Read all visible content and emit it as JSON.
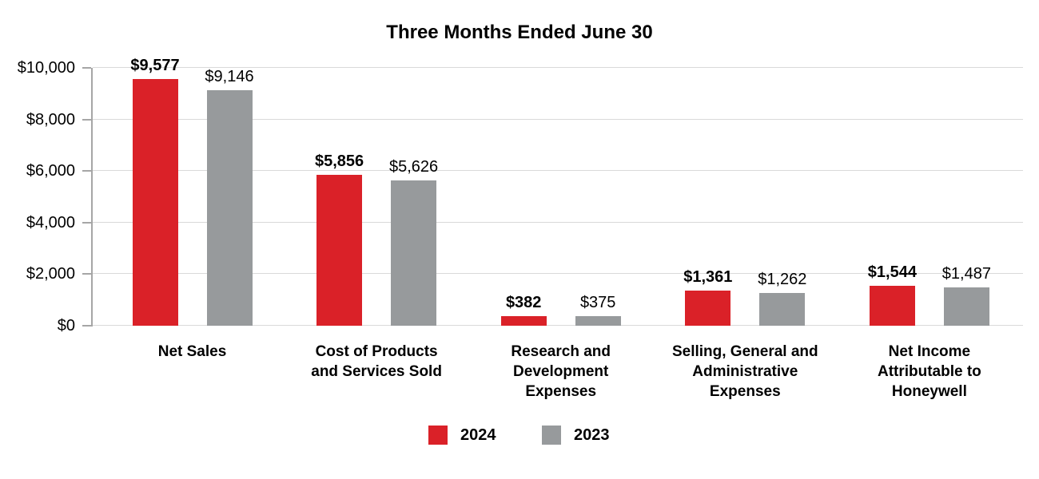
{
  "title": "Three Months Ended June 30",
  "colors": {
    "series_2024": "#DA2128",
    "series_2023": "#979A9C",
    "gridline": "#D9D9D9",
    "axis": "#A6A6A6",
    "text": "#000000",
    "background": "#FFFFFF"
  },
  "y_axis": {
    "tick_labels": [
      "$0",
      "$2,000",
      "$4,000",
      "$6,000",
      "$8,000",
      "$10,000"
    ],
    "tick_values": [
      0,
      2000,
      4000,
      6000,
      8000,
      10000
    ],
    "max": 10000
  },
  "legend": {
    "items": [
      {
        "label": "2024",
        "color": "#DA2128"
      },
      {
        "label": "2023",
        "color": "#979A9C"
      }
    ]
  },
  "category_display_lines": [
    [
      "Net Sales"
    ],
    [
      "Cost of Products",
      "and Services Sold"
    ],
    [
      "Research and",
      "Development",
      "Expenses"
    ],
    [
      "Selling, General and",
      "Administrative",
      "Expenses"
    ],
    [
      "Net Income",
      "Attributable to",
      "Honeywell"
    ]
  ],
  "chart_data": {
    "type": "bar",
    "title": "Three Months Ended June 30",
    "categories": [
      "Net Sales",
      "Cost of Products and Services Sold",
      "Research and Development Expenses",
      "Selling, General and Administrative Expenses",
      "Net Income Attributable to Honeywell"
    ],
    "series": [
      {
        "name": "2024",
        "color": "#DA2128",
        "values": [
          9577,
          5856,
          382,
          1361,
          1544
        ],
        "value_labels": [
          "$9,577",
          "$5,856",
          "$382",
          "$1,361",
          "$1,544"
        ],
        "label_style": "bold"
      },
      {
        "name": "2023",
        "color": "#979A9C",
        "values": [
          9146,
          5626,
          375,
          1262,
          1487
        ],
        "value_labels": [
          "$9,146",
          "$5,626",
          "$375",
          "$1,262",
          "$1,487"
        ],
        "label_style": "regular"
      }
    ],
    "xlabel": "",
    "ylabel": "",
    "ylim": [
      0,
      10000
    ],
    "grid": true,
    "legend_position": "bottom"
  }
}
